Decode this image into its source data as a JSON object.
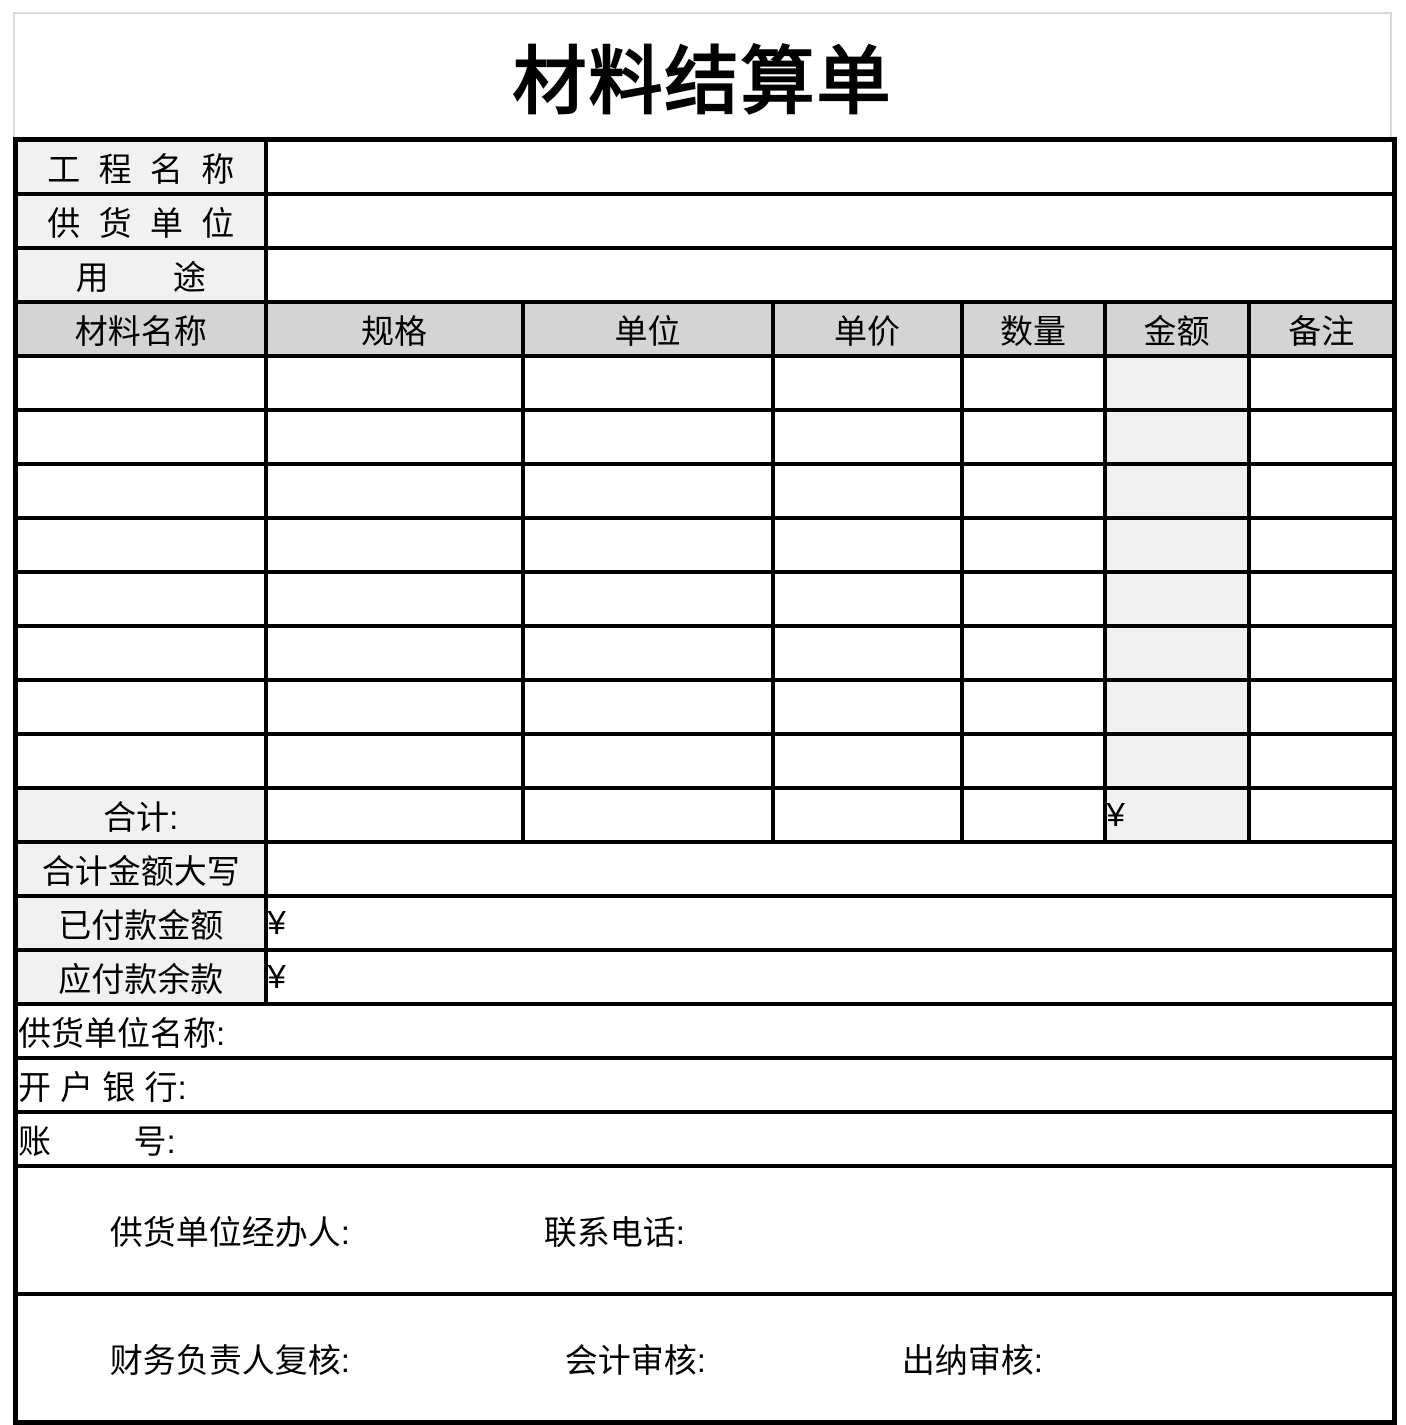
{
  "title": "材料结算单",
  "colors": {
    "border": "#000000",
    "header_bg": "#d4d4d4",
    "label_bg": "#f1f1f1",
    "amount_bg": "#f1f1f1",
    "title_border": "#d9d9d9",
    "page_bg": "#ffffff",
    "text": "#000000"
  },
  "info_rows": [
    {
      "label": "工  程  名  称",
      "value": ""
    },
    {
      "label": "供  货  单  位",
      "value": ""
    },
    {
      "label": "用       途",
      "value": ""
    }
  ],
  "materials_table": {
    "headers": [
      "材料名称",
      "规格",
      "单位",
      "单价",
      "数量",
      "金额",
      "备注"
    ],
    "empty_row_count": 8,
    "column_keys": [
      "name",
      "spec",
      "unit",
      "price",
      "qty",
      "amount",
      "note"
    ],
    "total_row": {
      "label": "合计:",
      "spec": "",
      "unit": "",
      "price": "",
      "qty": "",
      "amount": "¥",
      "note": ""
    }
  },
  "summary_rows": [
    {
      "label": "合计金额大写",
      "value": ""
    },
    {
      "label": "已付款金额",
      "value": "¥"
    },
    {
      "label": "应付款余款",
      "value": "¥"
    }
  ],
  "supplier_section": [
    {
      "label": "供货单位名称:"
    },
    {
      "label": "开 户 银 行:"
    },
    {
      "label": "账         号:"
    }
  ],
  "signature_section": {
    "row1": {
      "field1": "供货单位经办人:",
      "field2": "联系电话:"
    },
    "row2": {
      "field1": "财务负责人复核:",
      "field2": "会计审核:",
      "field3": "出纳审核:"
    }
  }
}
